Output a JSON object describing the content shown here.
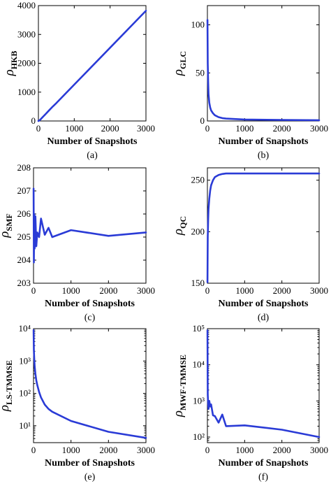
{
  "chart_data": [
    {
      "id": "a",
      "type": "line",
      "panel_label": "(a)",
      "ylabel_main": "ρ",
      "ylabel_sub": "HKB",
      "xlabel": "Number of Snapshots",
      "xlim": [
        0,
        3000
      ],
      "ylim": [
        0,
        4000
      ],
      "yscale": "linear",
      "xticks": [
        0,
        1000,
        2000,
        3000
      ],
      "yticks": [
        0,
        1000,
        2000,
        3000,
        4000
      ],
      "xtick_labels": [
        "0",
        "1000",
        "2000",
        "3000"
      ],
      "ytick_labels": [
        "0",
        "1000",
        "2000",
        "3000",
        "4000"
      ],
      "x": [
        0,
        50,
        100,
        200,
        300,
        400,
        500,
        1000,
        2000,
        3000
      ],
      "y": [
        0,
        40,
        110,
        240,
        370,
        500,
        620,
        1260,
        2540,
        3820
      ],
      "color": "#2a3bd6"
    },
    {
      "id": "b",
      "type": "line",
      "panel_label": "(b)",
      "ylabel_main": "ρ",
      "ylabel_sub": "GLC",
      "xlabel": "Number of Snapshots",
      "xlim": [
        0,
        3000
      ],
      "ylim": [
        0,
        120
      ],
      "yscale": "linear",
      "xticks": [
        0,
        1000,
        2000,
        3000
      ],
      "yticks": [
        0,
        50,
        100
      ],
      "xtick_labels": [
        "0",
        "1000",
        "2000",
        "3000"
      ],
      "ytick_labels": [
        "0",
        "50",
        "100"
      ],
      "x": [
        2,
        10,
        20,
        30,
        50,
        75,
        100,
        150,
        200,
        300,
        400,
        500,
        1000,
        2000,
        3000
      ],
      "y": [
        105,
        60,
        40,
        28,
        19,
        14,
        11,
        8,
        6,
        4,
        3,
        2.5,
        1.5,
        1,
        0.8
      ],
      "color": "#2a3bd6"
    },
    {
      "id": "c",
      "type": "line",
      "panel_label": "(c)",
      "ylabel_main": "ρ",
      "ylabel_sub": "SMF",
      "xlabel": "Number of Snapshots",
      "xlim": [
        0,
        3000
      ],
      "ylim": [
        203,
        208
      ],
      "yscale": "linear",
      "xticks": [
        0,
        1000,
        2000,
        3000
      ],
      "yticks": [
        203,
        204,
        205,
        206,
        207,
        208
      ],
      "xtick_labels": [
        "0",
        "1000",
        "2000",
        "3000"
      ],
      "ytick_labels": [
        "203",
        "204",
        "205",
        "206",
        "207",
        "208"
      ],
      "x": [
        2,
        10,
        20,
        30,
        50,
        75,
        100,
        150,
        200,
        300,
        400,
        500,
        1000,
        2000,
        3000
      ],
      "y": [
        207.1,
        203.9,
        206.0,
        204.5,
        205.9,
        204.6,
        205.2,
        205.0,
        205.8,
        205.1,
        205.4,
        205.0,
        205.3,
        205.05,
        205.2
      ],
      "color": "#2a3bd6"
    },
    {
      "id": "d",
      "type": "line",
      "panel_label": "(d)",
      "ylabel_main": "ρ",
      "ylabel_sub": "QC",
      "xlabel": "Number of Snapshots",
      "xlim": [
        0,
        3000
      ],
      "ylim": [
        150,
        262
      ],
      "yscale": "linear",
      "xticks": [
        0,
        1000,
        2000,
        3000
      ],
      "yticks": [
        150,
        200,
        250
      ],
      "xtick_labels": [
        "0",
        "1000",
        "2000",
        "3000"
      ],
      "ytick_labels": [
        "150",
        "200",
        "250"
      ],
      "x": [
        2,
        10,
        20,
        30,
        50,
        75,
        100,
        150,
        200,
        300,
        400,
        500,
        1000,
        2000,
        3000
      ],
      "y": [
        151,
        195,
        212,
        222,
        232,
        240,
        245,
        250,
        253,
        255,
        256,
        256.5,
        256.5,
        256.5,
        256.5
      ],
      "color": "#2a3bd6"
    },
    {
      "id": "e",
      "type": "line",
      "panel_label": "(e)",
      "ylabel_main": "ρ",
      "ylabel_sub": "LS-TMMSE",
      "xlabel": "Number of Snapshots",
      "xlim": [
        0,
        3000
      ],
      "ylim": [
        3,
        10000
      ],
      "yscale": "log",
      "xticks": [
        0,
        1000,
        2000,
        3000
      ],
      "yticks": [
        10,
        100,
        1000,
        10000
      ],
      "xtick_labels": [
        "0",
        "1000",
        "2000",
        "3000"
      ],
      "ytick_labels": [
        "10¹",
        "10²",
        "10³",
        "10⁴"
      ],
      "x": [
        2,
        10,
        20,
        30,
        50,
        75,
        100,
        150,
        200,
        300,
        400,
        500,
        1000,
        2000,
        3000
      ],
      "y": [
        9000,
        2200,
        1100,
        700,
        400,
        250,
        180,
        110,
        75,
        45,
        33,
        27,
        14,
        6.5,
        4.2
      ],
      "color": "#2a3bd6"
    },
    {
      "id": "f",
      "type": "line",
      "panel_label": "(f)",
      "ylabel_main": "ρ",
      "ylabel_sub": "MWF-TMMSE",
      "xlabel": "Number of Snapshots",
      "xlim": [
        0,
        3000
      ],
      "ylim": [
        70,
        100000
      ],
      "yscale": "log",
      "xticks": [
        0,
        1000,
        2000,
        3000
      ],
      "yticks": [
        100,
        1000,
        10000,
        100000
      ],
      "xtick_labels": [
        "0",
        "1000",
        "2000",
        "3000"
      ],
      "ytick_labels": [
        "10²",
        "10³",
        "10⁴",
        "10⁵"
      ],
      "x": [
        2,
        10,
        20,
        30,
        50,
        75,
        100,
        150,
        200,
        300,
        400,
        500,
        1000,
        2000,
        3000
      ],
      "y": [
        90000,
        1500,
        800,
        600,
        1000,
        700,
        800,
        400,
        380,
        250,
        420,
        200,
        210,
        160,
        100
      ],
      "color": "#2a3bd6"
    }
  ]
}
